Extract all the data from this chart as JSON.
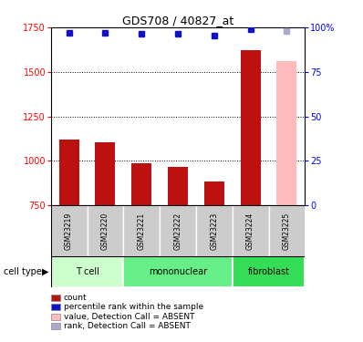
{
  "title": "GDS708 / 40827_at",
  "samples": [
    "GSM23219",
    "GSM23220",
    "GSM23221",
    "GSM23222",
    "GSM23223",
    "GSM23224",
    "GSM23225"
  ],
  "bar_values": [
    1120,
    1105,
    985,
    965,
    885,
    1620,
    1560
  ],
  "bar_colors": [
    "#bb1111",
    "#bb1111",
    "#bb1111",
    "#bb1111",
    "#bb1111",
    "#bb1111",
    "#ffbbbb"
  ],
  "rank_values": [
    97,
    97,
    96.5,
    96.5,
    95.5,
    99,
    98
  ],
  "rank_colors": [
    "#1111cc",
    "#1111cc",
    "#1111cc",
    "#1111cc",
    "#1111cc",
    "#1111cc",
    "#aaaacc"
  ],
  "ylim_left": [
    750,
    1750
  ],
  "ylim_right": [
    0,
    100
  ],
  "yticks_left": [
    750,
    1000,
    1250,
    1500,
    1750
  ],
  "yticks_right": [
    0,
    25,
    50,
    75,
    100
  ],
  "ytick_labels_right": [
    "0",
    "25",
    "50",
    "75",
    "100%"
  ],
  "cell_types": [
    {
      "label": "T cell",
      "samples": [
        0,
        1
      ],
      "color": "#ccffcc"
    },
    {
      "label": "mononuclear",
      "samples": [
        2,
        3,
        4
      ],
      "color": "#66ee88"
    },
    {
      "label": "fibroblast",
      "samples": [
        5,
        6
      ],
      "color": "#33dd55"
    }
  ],
  "legend": [
    {
      "label": "count",
      "color": "#bb1111"
    },
    {
      "label": "percentile rank within the sample",
      "color": "#1111cc"
    },
    {
      "label": "value, Detection Call = ABSENT",
      "color": "#ffbbbb"
    },
    {
      "label": "rank, Detection Call = ABSENT",
      "color": "#aaaacc"
    }
  ],
  "cell_type_label": "cell type",
  "bar_width": 0.55,
  "rank_marker_size": 5,
  "dotted_yticks": [
    1000,
    1250,
    1500
  ],
  "sample_box_color": "#cccccc"
}
